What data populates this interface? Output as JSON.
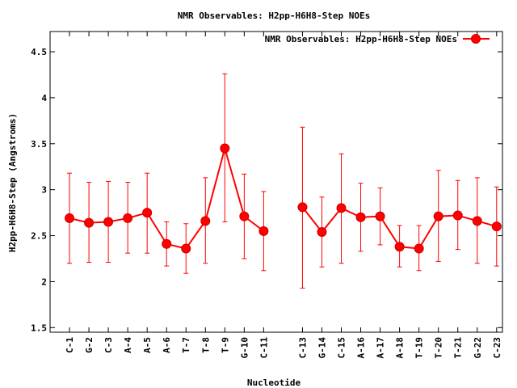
{
  "chart_data": {
    "type": "line",
    "title": "NMR Observables: H2pp-H6H8-Step NOEs",
    "xlabel": "Nucleotide",
    "ylabel": "H2pp-H6H8-Step (Angstroms)",
    "ylim": [
      1.45,
      4.72
    ],
    "yticks": [
      1.5,
      2,
      2.5,
      3,
      3.5,
      4,
      4.5
    ],
    "ytick_labels": [
      "1.5",
      "2",
      "2.5",
      "3",
      "3.5",
      "4",
      "4.5"
    ],
    "xlim": [
      0,
      23.3
    ],
    "legend_position": "top-right",
    "grid": false,
    "series_color": "#ff0000",
    "categories": [
      "C-1",
      "G-2",
      "C-3",
      "A-4",
      "A-5",
      "A-6",
      "T-7",
      "T-8",
      "T-9",
      "G-10",
      "C-11",
      "C-13",
      "G-14",
      "C-15",
      "A-16",
      "A-17",
      "A-18",
      "T-19",
      "T-20",
      "T-21",
      "G-22",
      "C-23"
    ],
    "x": [
      1,
      2,
      3,
      4,
      5,
      6,
      7,
      8,
      9,
      10,
      11,
      13,
      14,
      15,
      16,
      17,
      18,
      19,
      20,
      21,
      22,
      23
    ],
    "series": [
      {
        "name": "NMR Observables: H2pp-H6H8-Step NOEs",
        "segments": [
          [
            0,
            10
          ],
          [
            11,
            21
          ]
        ],
        "values": [
          2.69,
          2.64,
          2.65,
          2.69,
          2.75,
          2.41,
          2.36,
          2.66,
          3.45,
          2.71,
          2.55,
          2.81,
          2.54,
          2.8,
          2.7,
          2.71,
          2.38,
          2.36,
          2.71,
          2.72,
          2.66,
          2.6
        ],
        "err_low": [
          2.2,
          2.21,
          2.21,
          2.31,
          2.31,
          2.17,
          2.09,
          2.2,
          2.65,
          2.25,
          2.12,
          1.93,
          2.16,
          2.2,
          2.33,
          2.4,
          2.16,
          2.12,
          2.22,
          2.35,
          2.2,
          2.17
        ],
        "err_high": [
          3.18,
          3.08,
          3.09,
          3.08,
          3.18,
          2.65,
          2.63,
          3.13,
          4.26,
          3.17,
          2.98,
          3.68,
          2.92,
          3.39,
          3.07,
          3.02,
          2.61,
          2.61,
          3.21,
          3.1,
          3.13,
          3.03
        ]
      }
    ]
  }
}
